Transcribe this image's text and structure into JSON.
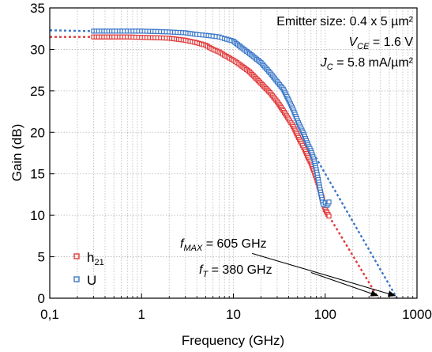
{
  "chart_data": {
    "type": "scatter",
    "xscale": "log",
    "xlim": [
      0.1,
      1000
    ],
    "ylim": [
      0,
      35
    ],
    "xlabel": "Frequency (GHz)",
    "ylabel": "Gain (dB)",
    "x_tick_labels": [
      "0,1",
      "1",
      "10",
      "100",
      "1000"
    ],
    "x_tick_values": [
      0.1,
      1,
      10,
      100,
      1000
    ],
    "y_tick_values": [
      0,
      5,
      10,
      15,
      20,
      25,
      30,
      35
    ],
    "grid": "on (major and minor vertical dotted, major horizontal dotted)",
    "legend_placement": "bottom-left",
    "annotations": {
      "emitter": "Emitter size: 0.4 x 5 µm²",
      "vce_sym": "V",
      "vce_sub": "CE",
      "vce_val": " = 1.6 V",
      "jc_sym": "J",
      "jc_sub": "C",
      "jc_val": " = 5.8 mA/µm²",
      "fmax_sym": "f",
      "fmax_sub": "MAX",
      "fmax_val": " = 605 GHz",
      "ft_sym": "f",
      "ft_sub": "T",
      "ft_val": " = 380 GHz"
    },
    "series": [
      {
        "name": "h21",
        "legend_main": "h",
        "legend_sub": "21",
        "color": "#e03a3a",
        "points": [
          [
            0.3,
            31.5
          ],
          [
            0.5,
            31.5
          ],
          [
            0.7,
            31.5
          ],
          [
            1,
            31.45
          ],
          [
            1.5,
            31.4
          ],
          [
            2,
            31.35
          ],
          [
            3,
            31.1
          ],
          [
            4,
            30.8
          ],
          [
            5,
            30.5
          ],
          [
            6,
            30.0
          ],
          [
            7,
            29.7
          ],
          [
            8,
            29.3
          ],
          [
            10,
            28.7
          ],
          [
            12,
            28.1
          ],
          [
            15,
            27.3
          ],
          [
            20,
            25.9
          ],
          [
            25,
            24.8
          ],
          [
            30,
            23.7
          ],
          [
            35,
            22.6
          ],
          [
            40,
            21.6
          ],
          [
            45,
            20.7
          ],
          [
            50,
            19.6
          ],
          [
            55,
            18.7
          ],
          [
            60,
            17.9
          ],
          [
            65,
            17.0
          ],
          [
            70,
            16.3
          ],
          [
            75,
            15.4
          ],
          [
            80,
            14.5
          ],
          [
            85,
            13.6
          ],
          [
            90,
            12.6
          ],
          [
            95,
            11.6
          ],
          [
            100,
            10.7
          ],
          [
            110,
            9.9
          ]
        ],
        "extrapolation": [
          [
            110,
            9.9
          ],
          [
            380,
            0
          ]
        ],
        "flat_extension": [
          [
            0.1,
            31.5
          ],
          [
            0.3,
            31.5
          ]
        ]
      },
      {
        "name": "U",
        "legend_main": "U",
        "legend_sub": "",
        "color": "#3a78c8",
        "points": [
          [
            0.3,
            32.2
          ],
          [
            0.5,
            32.2
          ],
          [
            0.7,
            32.2
          ],
          [
            1,
            32.2
          ],
          [
            1.5,
            32.15
          ],
          [
            2,
            32.1
          ],
          [
            3,
            32.0
          ],
          [
            4,
            31.8
          ],
          [
            5,
            31.7
          ],
          [
            6,
            31.6
          ],
          [
            7,
            31.5
          ],
          [
            8,
            31.3
          ],
          [
            10,
            31.0
          ],
          [
            12,
            30.3
          ],
          [
            15,
            29.5
          ],
          [
            20,
            28.4
          ],
          [
            25,
            27.2
          ],
          [
            30,
            26.1
          ],
          [
            35,
            25.2
          ],
          [
            40,
            23.9
          ],
          [
            45,
            22.7
          ],
          [
            50,
            21.4
          ],
          [
            55,
            20.4
          ],
          [
            60,
            19.5
          ],
          [
            65,
            18.5
          ],
          [
            70,
            17.8
          ],
          [
            75,
            16.8
          ],
          [
            80,
            15.5
          ],
          [
            85,
            14.0
          ],
          [
            90,
            12.5
          ],
          [
            95,
            11.3
          ],
          [
            100,
            11.5
          ],
          [
            105,
            11.2
          ],
          [
            110,
            11.6
          ]
        ],
        "extrapolation": [
          [
            70,
            18.0
          ],
          [
            605,
            0
          ]
        ],
        "flat_extension": [
          [
            0.1,
            32.3
          ],
          [
            0.3,
            32.2
          ]
        ]
      }
    ],
    "arrows": [
      {
        "label": "fmax",
        "from": [
          16,
          5.4
        ],
        "to": [
          580,
          0.3
        ]
      },
      {
        "label": "ft",
        "from": [
          70,
          3.1
        ],
        "to": [
          375,
          0.3
        ]
      }
    ]
  }
}
